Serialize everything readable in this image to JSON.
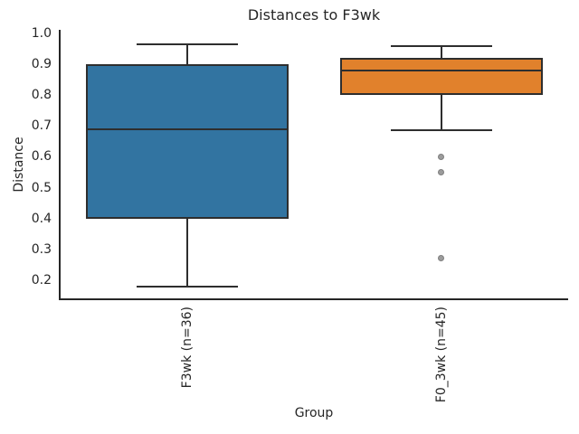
{
  "chart_data": {
    "type": "box",
    "title": "Distances to F3wk",
    "xlabel": "Group",
    "ylabel": "Distance",
    "ylim": [
      0.138,
      1.012
    ],
    "yticks": [
      1.0,
      0.9,
      0.8,
      0.7,
      0.6,
      0.5,
      0.4,
      0.3,
      0.2
    ],
    "ytick_labels": [
      "1.0",
      "0.9",
      "0.8",
      "0.7",
      "0.6",
      "0.5",
      "0.4",
      "0.3",
      "0.2"
    ],
    "grid": false,
    "legend": false,
    "groups": [
      {
        "label": "F3wk (n=36)",
        "n": 36,
        "color": "#3274a1",
        "whisker_low": 0.18,
        "q1": 0.4,
        "median": 0.69,
        "q3": 0.9,
        "whisker_high": 0.965,
        "outliers": []
      },
      {
        "label": "F0_3wk (n=45)",
        "n": 45,
        "color": "#e1812c",
        "whisker_low": 0.685,
        "q1": 0.8,
        "median": 0.88,
        "q3": 0.92,
        "whisker_high": 0.96,
        "outliers": [
          0.6,
          0.55,
          0.27
        ]
      }
    ],
    "style": {
      "edge_color": "#2e2e2e",
      "outlier_fill": "#9c9c9c",
      "outlier_edge": "#7f7f7f",
      "spine_color": "#262626"
    }
  }
}
